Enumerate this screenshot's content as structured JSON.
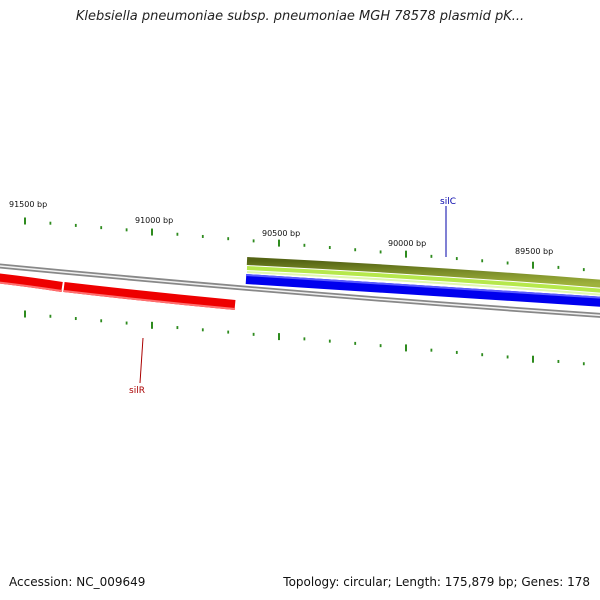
{
  "title": "Klebsiella pneumoniae subsp. pneumoniae MGH 78578 plasmid pK...",
  "footer": {
    "accession": "Accession: NC_009649",
    "summary": "Topology: circular; Length: 175,879 bp; Genes: 178"
  },
  "colors": {
    "backbone": "#8a8a8a",
    "tick": "#2e8b1e",
    "gene_forward": "#0000ee",
    "gene_reverse": "#ee0000",
    "gene_silC_label": "#0000aa",
    "gene_silR_label": "#aa0000",
    "olive": "#6b7d1c",
    "lime": "#b4e64a"
  },
  "ruler": {
    "labels": [
      "91500 bp",
      "91000 bp",
      "90500 bp",
      "90000 bp",
      "89500 bp"
    ]
  },
  "genes": [
    {
      "name": "silC",
      "strand": "+"
    },
    {
      "name": "silR",
      "strand": "-"
    }
  ]
}
